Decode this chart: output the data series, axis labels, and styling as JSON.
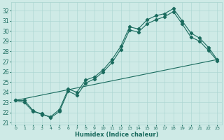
{
  "xlabel": "Humidex (Indice chaleur)",
  "xlim": [
    -0.5,
    23.5
  ],
  "ylim": [
    20.8,
    32.8
  ],
  "xticks": [
    0,
    1,
    2,
    3,
    4,
    5,
    6,
    7,
    8,
    9,
    10,
    11,
    12,
    13,
    14,
    15,
    16,
    17,
    18,
    19,
    20,
    21,
    22,
    23
  ],
  "yticks": [
    21,
    22,
    23,
    24,
    25,
    26,
    27,
    28,
    29,
    30,
    31,
    32
  ],
  "bg_color": "#ceeae6",
  "grid_color": "#a8d4cf",
  "line_color": "#1a6b5e",
  "line1_x": [
    0,
    1,
    2,
    3,
    4,
    5,
    6,
    7,
    8,
    9,
    10,
    11,
    12,
    13,
    14,
    15,
    16,
    17,
    18,
    19,
    20,
    21,
    22,
    23
  ],
  "line1_y": [
    23.2,
    23.2,
    22.2,
    21.8,
    21.6,
    22.3,
    24.3,
    24.0,
    25.2,
    25.5,
    26.2,
    27.2,
    28.5,
    30.4,
    30.2,
    31.1,
    31.5,
    31.7,
    32.2,
    31.0,
    29.8,
    29.3,
    28.4,
    27.2
  ],
  "line2_x": [
    0,
    1,
    2,
    3,
    4,
    5,
    6,
    7,
    8,
    9,
    10,
    11,
    12,
    13,
    14,
    15,
    16,
    17,
    18,
    19,
    20,
    21,
    22,
    23
  ],
  "line2_y": [
    23.2,
    23.0,
    22.1,
    21.9,
    21.5,
    22.1,
    24.1,
    23.7,
    24.9,
    25.3,
    26.0,
    26.9,
    28.2,
    30.1,
    29.9,
    30.7,
    31.1,
    31.4,
    31.9,
    30.7,
    29.4,
    29.0,
    28.1,
    27.1
  ],
  "line3_x": [
    0,
    23
  ],
  "line3_y": [
    23.2,
    27.2
  ],
  "ytick_fontsize": 5.5,
  "xtick_fontsize": 4.5,
  "xlabel_fontsize": 6.0
}
